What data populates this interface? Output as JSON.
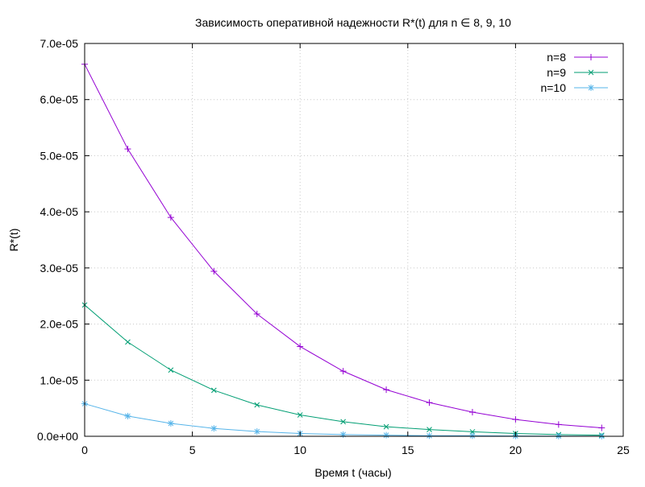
{
  "chart_data": {
    "type": "line",
    "title": "Зависимость оперативной надежности R*(t) для n ∈ 8, 9, 10",
    "xlabel": "Время t (часы)",
    "ylabel": "R*(t)",
    "xlim": [
      0,
      25
    ],
    "ylim": [
      0,
      7e-05
    ],
    "xticks": [
      0,
      5,
      10,
      15,
      20,
      25
    ],
    "xtick_labels": [
      "0",
      "5",
      "10",
      "15",
      "20",
      "25"
    ],
    "yticks": [
      0,
      1e-05,
      2e-05,
      3e-05,
      4e-05,
      5e-05,
      6e-05,
      7e-05
    ],
    "ytick_labels": [
      "0.0e+00",
      "1.0e-05",
      "2.0e-05",
      "3.0e-05",
      "4.0e-05",
      "5.0e-05",
      "6.0e-05",
      "7.0e-05"
    ],
    "grid": true,
    "legend_position": "top-right",
    "x": [
      0,
      2,
      4,
      6,
      8,
      10,
      12,
      14,
      16,
      18,
      20,
      22,
      24
    ],
    "series": [
      {
        "name": "n=8",
        "color": "#9400d3",
        "marker": "plus",
        "values": [
          6.63e-05,
          5.12e-05,
          3.9e-05,
          2.94e-05,
          2.18e-05,
          1.6e-05,
          1.16e-05,
          8.3e-06,
          6e-06,
          4.3e-06,
          3e-06,
          2.1e-06,
          1.5e-06
        ]
      },
      {
        "name": "n=9",
        "color": "#009e73",
        "marker": "cross",
        "values": [
          2.34e-05,
          1.68e-05,
          1.18e-05,
          8.2e-06,
          5.6e-06,
          3.8e-06,
          2.6e-06,
          1.7e-06,
          1.2e-06,
          8e-07,
          5e-07,
          3e-07,
          2e-07
        ]
      },
      {
        "name": "n=10",
        "color": "#56b4e9",
        "marker": "star",
        "values": [
          5.8e-06,
          3.6e-06,
          2.3e-06,
          1.4e-06,
          8.5e-07,
          5e-07,
          3e-07,
          2e-07,
          1e-07,
          1e-07,
          5e-08,
          3e-08,
          2e-08
        ]
      }
    ]
  }
}
